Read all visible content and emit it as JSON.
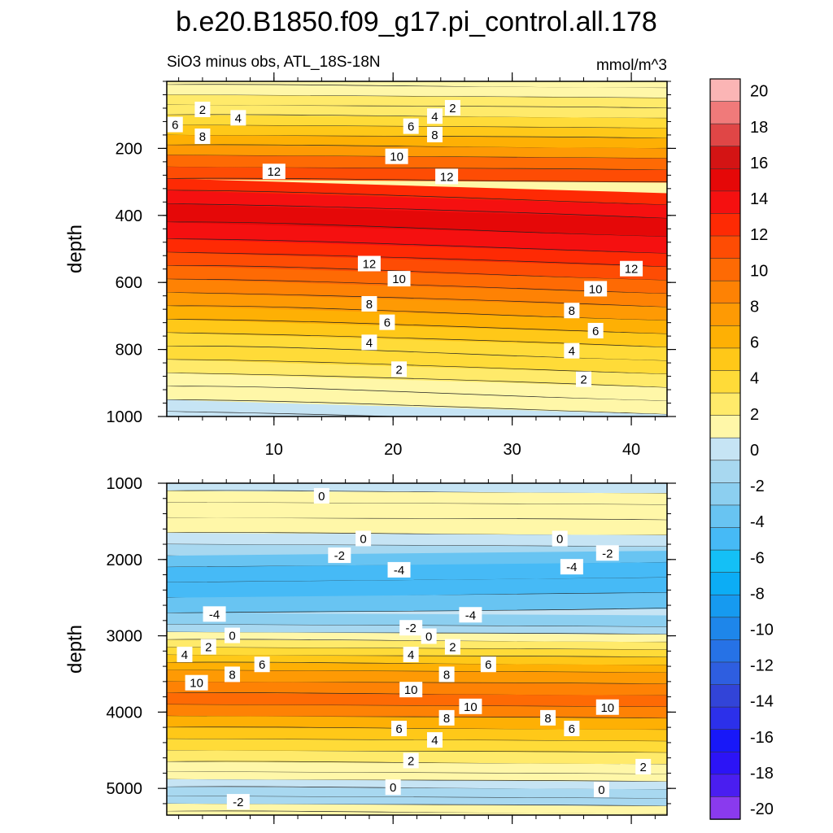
{
  "chart_data": {
    "type": "heatmap",
    "title": "b.e20.B1850.f09_g17.pi_control.all.178",
    "subtitle_left": "SiO3 minus obs, ATL_18S-18N",
    "units": "mmol/m^3",
    "ylabel": "depth",
    "colorbar": {
      "labels": [
        "20",
        "18",
        "16",
        "14",
        "12",
        "10",
        "8",
        "6",
        "4",
        "2",
        "0",
        "-2",
        "-4",
        "-6",
        "-8",
        "-10",
        "-12",
        "-14",
        "-16",
        "-18",
        "-20"
      ],
      "colors": [
        "#fbb5b5",
        "#f07a7a",
        "#e04646",
        "#d41414",
        "#e50808",
        "#f51010",
        "#fe2a04",
        "#fe4c04",
        "#fe6a04",
        "#fe8204",
        "#fe9a04",
        "#feb004",
        "#ffc818",
        "#ffdb38",
        "#ffea6a",
        "#fff7a8",
        "#c6e4f4",
        "#a8d8f0",
        "#8ccff0",
        "#68c4f2",
        "#46baf6",
        "#14c0f6",
        "#0cadf5",
        "#169af0",
        "#1e86ea",
        "#2672e6",
        "#2e5ee0",
        "#3244d8",
        "#2c30ea",
        "#1818f8",
        "#2c14f6",
        "#4a1ef0",
        "#8a3aee"
      ]
    },
    "panels": [
      {
        "name": "upper",
        "ylim": [
          1000,
          0
        ],
        "yticks": [
          200,
          400,
          600,
          800,
          1000
        ],
        "xlim": [
          1,
          43
        ],
        "xticks": [
          10,
          20,
          30,
          40
        ],
        "bands": [
          {
            "d": 10,
            "v": 0.5
          },
          {
            "d": 40,
            "v": 1.2
          },
          {
            "d": 70,
            "v": 2.2
          },
          {
            "d": 100,
            "v": 3.5
          },
          {
            "d": 130,
            "v": 5
          },
          {
            "d": 160,
            "v": 6.3
          },
          {
            "d": 190,
            "v": 7.6
          },
          {
            "d": 220,
            "v": 9
          },
          {
            "d": 255,
            "v": 10.4
          },
          {
            "d": 290,
            "v": 11.5
          },
          {
            "d": 325,
            "v": 12.6
          },
          {
            "d": 365,
            "v": 13.6
          },
          {
            "d": 420,
            "v": 14.1
          },
          {
            "d": 470,
            "v": 13.7
          },
          {
            "d": 510,
            "v": 13
          },
          {
            "d": 550,
            "v": 12
          },
          {
            "d": 590,
            "v": 10.9
          },
          {
            "d": 630,
            "v": 9.8
          },
          {
            "d": 670,
            "v": 8.6
          },
          {
            "d": 710,
            "v": 7.4
          },
          {
            "d": 750,
            "v": 6.2
          },
          {
            "d": 790,
            "v": 5
          },
          {
            "d": 830,
            "v": 3.8
          },
          {
            "d": 870,
            "v": 2.7
          },
          {
            "d": 910,
            "v": 1.6
          },
          {
            "d": 950,
            "v": 0.7
          },
          {
            "d": 985,
            "v": -0.5
          },
          {
            "d": 1000,
            "v": -0.8
          }
        ],
        "labels": [
          {
            "x": 4,
            "d": 85,
            "t": "2"
          },
          {
            "x": 7,
            "d": 110,
            "t": "4"
          },
          {
            "x": 1.7,
            "d": 130,
            "t": "6"
          },
          {
            "x": 4,
            "d": 165,
            "t": "8"
          },
          {
            "x": 10,
            "d": 270,
            "t": "12"
          },
          {
            "x": 25,
            "d": 80,
            "t": "2"
          },
          {
            "x": 23.5,
            "d": 105,
            "t": "4"
          },
          {
            "x": 21.5,
            "d": 135,
            "t": "6"
          },
          {
            "x": 23.5,
            "d": 160,
            "t": "8"
          },
          {
            "x": 20.3,
            "d": 225,
            "t": "10"
          },
          {
            "x": 24.5,
            "d": 285,
            "t": "12"
          },
          {
            "x": 18,
            "d": 545,
            "t": "12"
          },
          {
            "x": 20.5,
            "d": 590,
            "t": "10"
          },
          {
            "x": 18,
            "d": 665,
            "t": "8"
          },
          {
            "x": 19.5,
            "d": 720,
            "t": "6"
          },
          {
            "x": 18,
            "d": 780,
            "t": "4"
          },
          {
            "x": 20.5,
            "d": 860,
            "t": "2"
          },
          {
            "x": 40,
            "d": 560,
            "t": "12"
          },
          {
            "x": 37,
            "d": 620,
            "t": "10"
          },
          {
            "x": 35,
            "d": 685,
            "t": "8"
          },
          {
            "x": 37,
            "d": 745,
            "t": "6"
          },
          {
            "x": 35,
            "d": 805,
            "t": "4"
          },
          {
            "x": 36,
            "d": 890,
            "t": "2"
          }
        ]
      },
      {
        "name": "lower",
        "ylim": [
          5350,
          1000
        ],
        "yticks": [
          1000,
          2000,
          3000,
          4000,
          5000
        ],
        "xlim": [
          1,
          43
        ],
        "xticks": [
          10,
          20,
          30,
          40
        ],
        "bands": [
          {
            "d": 1100,
            "v": -0.4
          },
          {
            "d": 1250,
            "v": 0.4
          },
          {
            "d": 1450,
            "v": 0.8
          },
          {
            "d": 1650,
            "v": 0.4
          },
          {
            "d": 1800,
            "v": -0.8
          },
          {
            "d": 1950,
            "v": -1.8
          },
          {
            "d": 2100,
            "v": -3
          },
          {
            "d": 2300,
            "v": -4.2
          },
          {
            "d": 2500,
            "v": -4.5
          },
          {
            "d": 2700,
            "v": -3.8
          },
          {
            "d": 2850,
            "v": -2.5
          },
          {
            "d": 2950,
            "v": -1
          },
          {
            "d": 3050,
            "v": 0.8
          },
          {
            "d": 3150,
            "v": 2.5
          },
          {
            "d": 3250,
            "v": 4
          },
          {
            "d": 3350,
            "v": 5.5
          },
          {
            "d": 3450,
            "v": 7
          },
          {
            "d": 3600,
            "v": 8.5
          },
          {
            "d": 3750,
            "v": 10
          },
          {
            "d": 3900,
            "v": 10.8
          },
          {
            "d": 4050,
            "v": 9.5
          },
          {
            "d": 4200,
            "v": 8
          },
          {
            "d": 4350,
            "v": 6.5
          },
          {
            "d": 4500,
            "v": 5
          },
          {
            "d": 4650,
            "v": 3.5
          },
          {
            "d": 4780,
            "v": 2
          },
          {
            "d": 4880,
            "v": 0.7
          },
          {
            "d": 4980,
            "v": -0.6
          },
          {
            "d": 5100,
            "v": -1.6
          },
          {
            "d": 5200,
            "v": -1.2
          },
          {
            "d": 5300,
            "v": 0.2
          },
          {
            "d": 5350,
            "v": 1.5
          }
        ],
        "labels": [
          {
            "x": 14,
            "d": 1170,
            "t": "0"
          },
          {
            "x": 17.5,
            "d": 1730,
            "t": "0"
          },
          {
            "x": 15.5,
            "d": 1950,
            "t": "-2"
          },
          {
            "x": 20.5,
            "d": 2140,
            "t": "-4"
          },
          {
            "x": 34,
            "d": 1730,
            "t": "0"
          },
          {
            "x": 38,
            "d": 1920,
            "t": "-2"
          },
          {
            "x": 35,
            "d": 2100,
            "t": "-4"
          },
          {
            "x": 5,
            "d": 2720,
            "t": "-4"
          },
          {
            "x": 26.5,
            "d": 2730,
            "t": "-4"
          },
          {
            "x": 21.5,
            "d": 2900,
            "t": "-2"
          },
          {
            "x": 6.5,
            "d": 3000,
            "t": "0"
          },
          {
            "x": 23,
            "d": 3010,
            "t": "0"
          },
          {
            "x": 4.5,
            "d": 3150,
            "t": "2"
          },
          {
            "x": 25,
            "d": 3150,
            "t": "2"
          },
          {
            "x": 2.5,
            "d": 3250,
            "t": "4"
          },
          {
            "x": 21.5,
            "d": 3250,
            "t": "4"
          },
          {
            "x": 9,
            "d": 3380,
            "t": "6"
          },
          {
            "x": 28,
            "d": 3380,
            "t": "6"
          },
          {
            "x": 6.5,
            "d": 3510,
            "t": "8"
          },
          {
            "x": 24.5,
            "d": 3510,
            "t": "8"
          },
          {
            "x": 3.5,
            "d": 3620,
            "t": "10"
          },
          {
            "x": 21.5,
            "d": 3710,
            "t": "10"
          },
          {
            "x": 26.5,
            "d": 3930,
            "t": "10"
          },
          {
            "x": 38,
            "d": 3940,
            "t": "10"
          },
          {
            "x": 24.5,
            "d": 4080,
            "t": "8"
          },
          {
            "x": 33,
            "d": 4080,
            "t": "8"
          },
          {
            "x": 20.5,
            "d": 4220,
            "t": "6"
          },
          {
            "x": 35,
            "d": 4220,
            "t": "6"
          },
          {
            "x": 23.5,
            "d": 4370,
            "t": "4"
          },
          {
            "x": 21.5,
            "d": 4640,
            "t": "2"
          },
          {
            "x": 41,
            "d": 4720,
            "t": "2"
          },
          {
            "x": 20,
            "d": 4990,
            "t": "0"
          },
          {
            "x": 37.5,
            "d": 5020,
            "t": "0"
          },
          {
            "x": 7,
            "d": 5180,
            "t": "-2"
          }
        ]
      }
    ]
  }
}
